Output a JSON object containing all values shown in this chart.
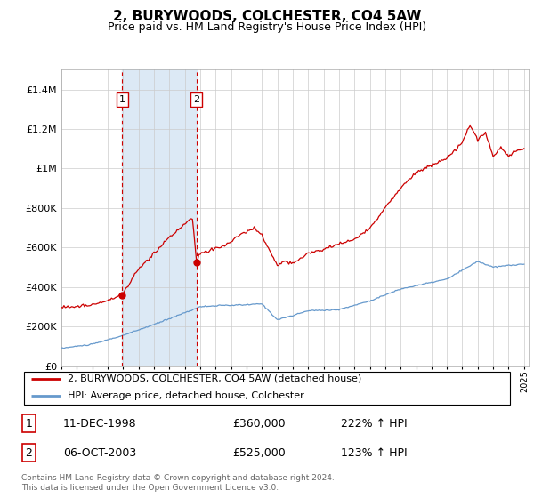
{
  "title": "2, BURYWOODS, COLCHESTER, CO4 5AW",
  "subtitle": "Price paid vs. HM Land Registry's House Price Index (HPI)",
  "title_fontsize": 11,
  "subtitle_fontsize": 9,
  "ylim": [
    0,
    1500000
  ],
  "yticks": [
    0,
    200000,
    400000,
    600000,
    800000,
    1000000,
    1200000,
    1400000
  ],
  "ytick_labels": [
    "£0",
    "£200K",
    "£400K",
    "£600K",
    "£800K",
    "£1M",
    "£1.2M",
    "£1.4M"
  ],
  "sale1_date_num": 1998.94,
  "sale1_price": 360000,
  "sale1_label": "1",
  "sale2_date_num": 2003.76,
  "sale2_price": 525000,
  "sale2_label": "2",
  "shade_color": "#dce9f5",
  "dashed_line_color": "#cc0000",
  "red_line_color": "#cc0000",
  "blue_line_color": "#6699cc",
  "bg_color": "#ffffff",
  "grid_color": "#cccccc",
  "legend_label_red": "2, BURYWOODS, COLCHESTER, CO4 5AW (detached house)",
  "legend_label_blue": "HPI: Average price, detached house, Colchester",
  "table_row1": [
    "1",
    "11-DEC-1998",
    "£360,000",
    "222% ↑ HPI"
  ],
  "table_row2": [
    "2",
    "06-OCT-2003",
    "£525,000",
    "123% ↑ HPI"
  ],
  "footnote": "Contains HM Land Registry data © Crown copyright and database right 2024.\nThis data is licensed under the Open Government Licence v3.0."
}
